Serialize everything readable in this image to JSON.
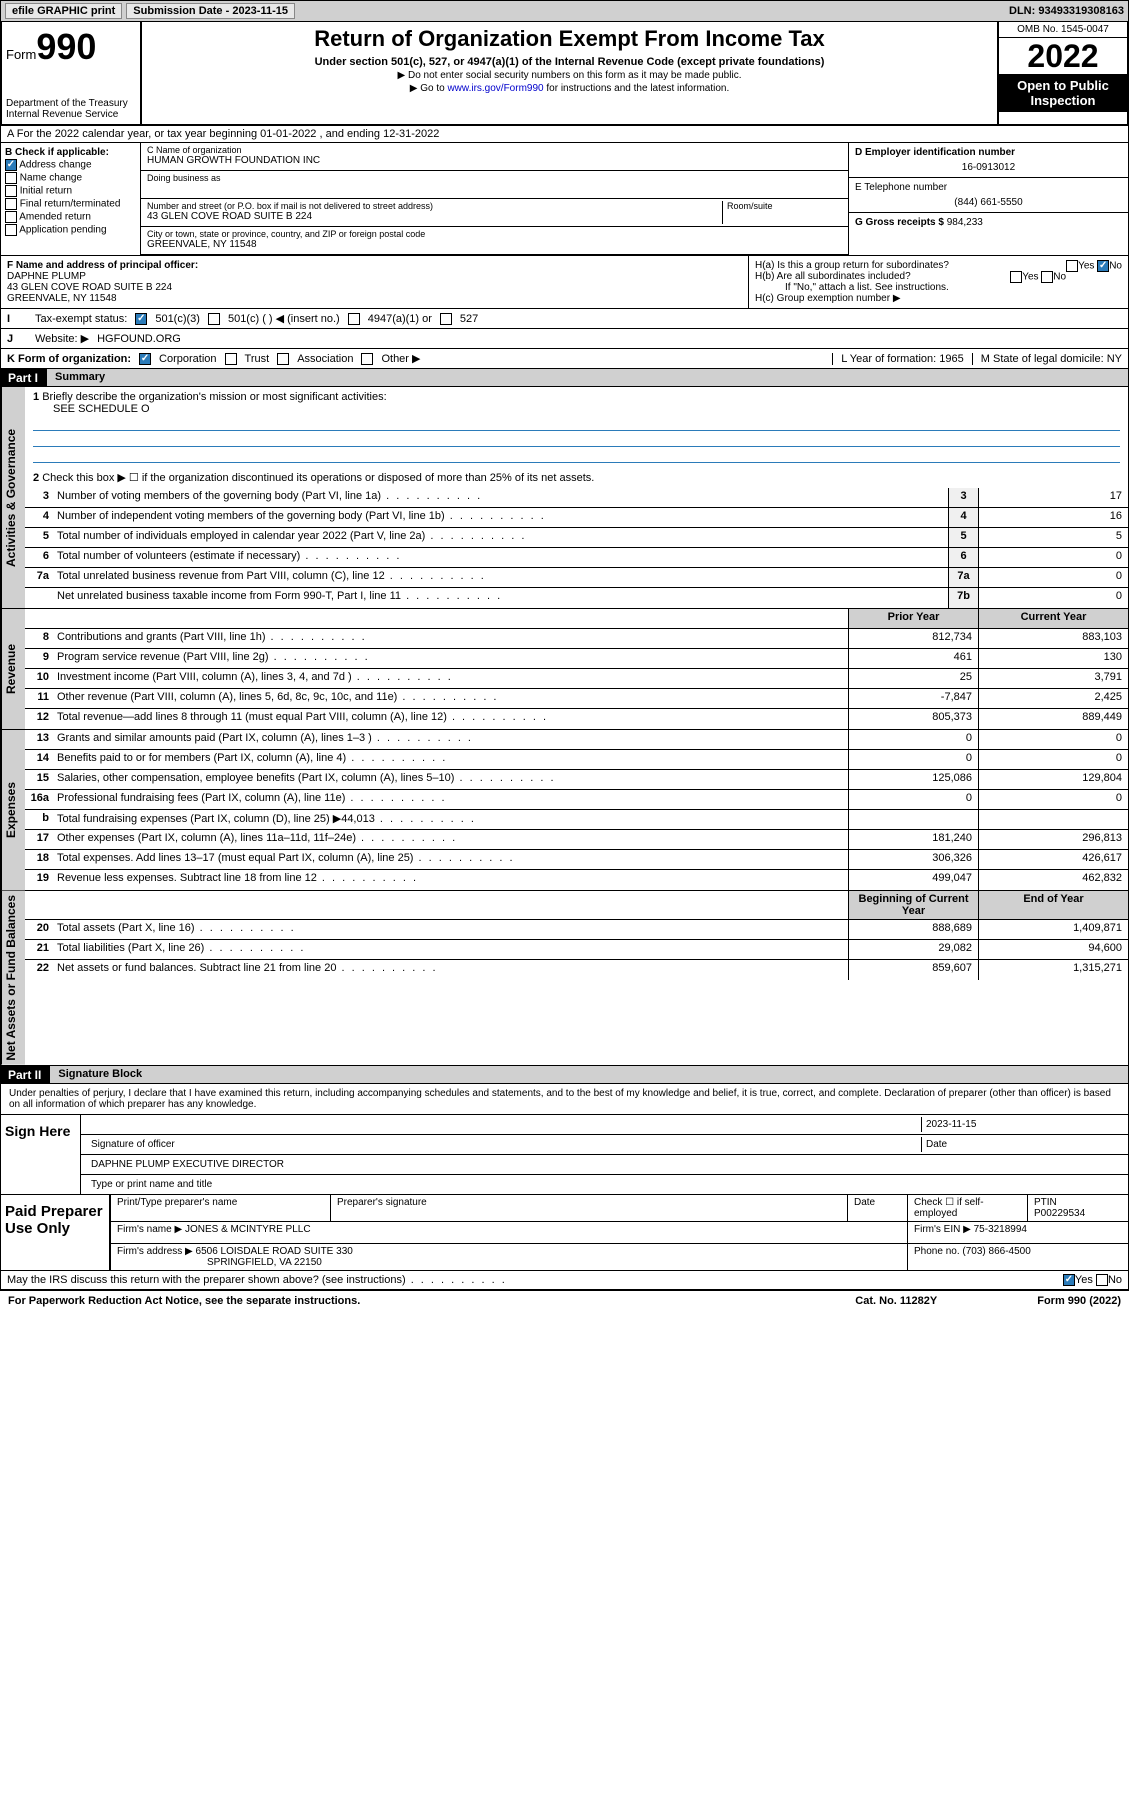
{
  "topbar": {
    "efile": "efile GRAPHIC print",
    "sub_label": "Submission Date - ",
    "sub_date": "2023-11-15",
    "dln": "DLN: 93493319308163"
  },
  "header": {
    "form_word": "Form",
    "form_num": "990",
    "dept": "Department of the Treasury",
    "irs": "Internal Revenue Service",
    "title": "Return of Organization Exempt From Income Tax",
    "sub1": "Under section 501(c), 527, or 4947(a)(1) of the Internal Revenue Code (except private foundations)",
    "sub2a": "▶ Do not enter social security numbers on this form as it may be made public.",
    "sub2b": "▶ Go to ",
    "link": "www.irs.gov/Form990",
    "sub2c": " for instructions and the latest information.",
    "omb": "OMB No. 1545-0047",
    "year": "2022",
    "open": "Open to Public Inspection"
  },
  "lineA": "A For the 2022 calendar year, or tax year beginning 01-01-2022   , and ending 12-31-2022",
  "boxB": {
    "label": "B Check if applicable:",
    "opts": [
      "Address change",
      "Name change",
      "Initial return",
      "Final return/terminated",
      "Amended return",
      "Application pending"
    ],
    "checked": [
      true,
      false,
      false,
      false,
      false,
      false
    ]
  },
  "boxC": {
    "name_lbl": "C Name of organization",
    "name": "HUMAN GROWTH FOUNDATION INC",
    "dba_lbl": "Doing business as",
    "addr_lbl": "Number and street (or P.O. box if mail is not delivered to street address)",
    "room_lbl": "Room/suite",
    "addr": "43 GLEN COVE ROAD SUITE B 224",
    "city_lbl": "City or town, state or province, country, and ZIP or foreign postal code",
    "city": "GREENVALE, NY  11548"
  },
  "boxD": {
    "lbl": "D Employer identification number",
    "val": "16-0913012"
  },
  "boxE": {
    "lbl": "E Telephone number",
    "val": "(844) 661-5550"
  },
  "boxG": {
    "lbl": "G Gross receipts $",
    "val": "984,233"
  },
  "boxF": {
    "lbl": "F Name and address of principal officer:",
    "name": "DAPHNE PLUMP",
    "addr1": "43 GLEN COVE ROAD SUITE B 224",
    "addr2": "GREENVALE, NY  11548"
  },
  "boxH": {
    "a": "H(a)  Is this a group return for subordinates?",
    "b": "H(b)  Are all subordinates included?",
    "b_note": "If \"No,\" attach a list. See instructions.",
    "c": "H(c)  Group exemption number ▶",
    "yes": "Yes",
    "no": "No"
  },
  "lineI": {
    "lbl": "Tax-exempt status:",
    "opts": [
      "501(c)(3)",
      "501(c) (  ) ◀ (insert no.)",
      "4947(a)(1) or",
      "527"
    ]
  },
  "lineJ": {
    "lbl": "Website: ▶",
    "val": "HGFOUND.ORG"
  },
  "lineK": {
    "lbl": "K Form of organization:",
    "opts": [
      "Corporation",
      "Trust",
      "Association",
      "Other ▶"
    ]
  },
  "lineL": {
    "lbl": "L Year of formation:",
    "val": "1965"
  },
  "lineM": {
    "lbl": "M State of legal domicile:",
    "val": "NY"
  },
  "part1": {
    "hdr": "Part I",
    "title": "Summary",
    "q1": "Briefly describe the organization's mission or most significant activities:",
    "q1_val": "SEE SCHEDULE O",
    "q2": "Check this box ▶ ☐ if the organization discontinued its operations or disposed of more than 25% of its net assets.",
    "vtabs": [
      "Activities & Governance",
      "Revenue",
      "Expenses",
      "Net Assets or Fund Balances"
    ],
    "rows_ag": [
      {
        "n": "3",
        "t": "Number of voting members of the governing body (Part VI, line 1a)",
        "b": "3",
        "v": "17"
      },
      {
        "n": "4",
        "t": "Number of independent voting members of the governing body (Part VI, line 1b)",
        "b": "4",
        "v": "16"
      },
      {
        "n": "5",
        "t": "Total number of individuals employed in calendar year 2022 (Part V, line 2a)",
        "b": "5",
        "v": "5"
      },
      {
        "n": "6",
        "t": "Total number of volunteers (estimate if necessary)",
        "b": "6",
        "v": "0"
      },
      {
        "n": "7a",
        "t": "Total unrelated business revenue from Part VIII, column (C), line 12",
        "b": "7a",
        "v": "0"
      },
      {
        "n": "",
        "t": "Net unrelated business taxable income from Form 990-T, Part I, line 11",
        "b": "7b",
        "v": "0"
      }
    ],
    "col_prior": "Prior Year",
    "col_curr": "Current Year",
    "rows_rev": [
      {
        "n": "8",
        "t": "Contributions and grants (Part VIII, line 1h)",
        "p": "812,734",
        "c": "883,103"
      },
      {
        "n": "9",
        "t": "Program service revenue (Part VIII, line 2g)",
        "p": "461",
        "c": "130"
      },
      {
        "n": "10",
        "t": "Investment income (Part VIII, column (A), lines 3, 4, and 7d )",
        "p": "25",
        "c": "3,791"
      },
      {
        "n": "11",
        "t": "Other revenue (Part VIII, column (A), lines 5, 6d, 8c, 9c, 10c, and 11e)",
        "p": "-7,847",
        "c": "2,425"
      },
      {
        "n": "12",
        "t": "Total revenue—add lines 8 through 11 (must equal Part VIII, column (A), line 12)",
        "p": "805,373",
        "c": "889,449"
      }
    ],
    "rows_exp": [
      {
        "n": "13",
        "t": "Grants and similar amounts paid (Part IX, column (A), lines 1–3 )",
        "p": "0",
        "c": "0"
      },
      {
        "n": "14",
        "t": "Benefits paid to or for members (Part IX, column (A), line 4)",
        "p": "0",
        "c": "0"
      },
      {
        "n": "15",
        "t": "Salaries, other compensation, employee benefits (Part IX, column (A), lines 5–10)",
        "p": "125,086",
        "c": "129,804"
      },
      {
        "n": "16a",
        "t": "Professional fundraising fees (Part IX, column (A), line 11e)",
        "p": "0",
        "c": "0"
      },
      {
        "n": "b",
        "t": "Total fundraising expenses (Part IX, column (D), line 25) ▶44,013",
        "p": "",
        "c": ""
      },
      {
        "n": "17",
        "t": "Other expenses (Part IX, column (A), lines 11a–11d, 11f–24e)",
        "p": "181,240",
        "c": "296,813"
      },
      {
        "n": "18",
        "t": "Total expenses. Add lines 13–17 (must equal Part IX, column (A), line 25)",
        "p": "306,326",
        "c": "426,617"
      },
      {
        "n": "19",
        "t": "Revenue less expenses. Subtract line 18 from line 12",
        "p": "499,047",
        "c": "462,832"
      }
    ],
    "col_beg": "Beginning of Current Year",
    "col_end": "End of Year",
    "rows_net": [
      {
        "n": "20",
        "t": "Total assets (Part X, line 16)",
        "p": "888,689",
        "c": "1,409,871"
      },
      {
        "n": "21",
        "t": "Total liabilities (Part X, line 26)",
        "p": "29,082",
        "c": "94,600"
      },
      {
        "n": "22",
        "t": "Net assets or fund balances. Subtract line 21 from line 20",
        "p": "859,607",
        "c": "1,315,271"
      }
    ]
  },
  "part2": {
    "hdr": "Part II",
    "title": "Signature Block",
    "decl": "Under penalties of perjury, I declare that I have examined this return, including accompanying schedules and statements, and to the best of my knowledge and belief, it is true, correct, and complete. Declaration of preparer (other than officer) is based on all information of which preparer has any knowledge.",
    "sign_here": "Sign Here",
    "sig_off": "Signature of officer",
    "sig_date": "Date",
    "sig_date_val": "2023-11-15",
    "sig_name": "DAPHNE PLUMP  EXECUTIVE DIRECTOR",
    "sig_name_lbl": "Type or print name and title",
    "paid": "Paid Preparer Use Only",
    "prep_name_lbl": "Print/Type preparer's name",
    "prep_sig_lbl": "Preparer's signature",
    "prep_date_lbl": "Date",
    "prep_check": "Check ☐ if self-employed",
    "ptin_lbl": "PTIN",
    "ptin": "P00229534",
    "firm_name_lbl": "Firm's name    ▶",
    "firm_name": "JONES & MCINTYRE PLLC",
    "firm_ein_lbl": "Firm's EIN ▶",
    "firm_ein": "75-3218994",
    "firm_addr_lbl": "Firm's address ▶",
    "firm_addr1": "6506 LOISDALE ROAD SUITE 330",
    "firm_addr2": "SPRINGFIELD, VA  22150",
    "phone_lbl": "Phone no.",
    "phone": "(703) 866-4500",
    "may_discuss": "May the IRS discuss this return with the preparer shown above? (see instructions)"
  },
  "footer": {
    "l": "For Paperwork Reduction Act Notice, see the separate instructions.",
    "m": "Cat. No. 11282Y",
    "r": "Form 990 (2022)"
  }
}
